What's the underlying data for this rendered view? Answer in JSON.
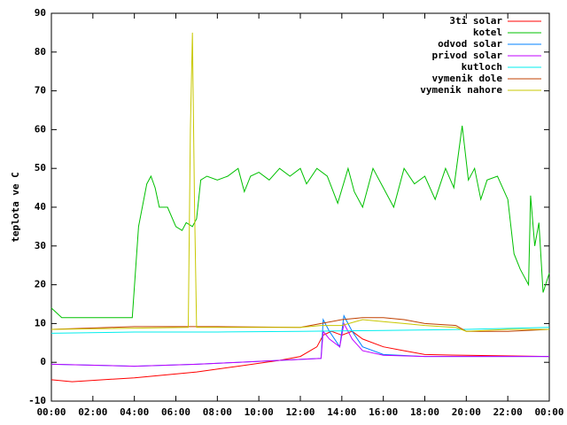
{
  "chart_data": {
    "type": "line",
    "ylabel": "teplota ve C",
    "xlim": [
      0,
      24
    ],
    "ylim": [
      -10,
      90
    ],
    "xticks": [
      {
        "value": 0,
        "label": "00:00"
      },
      {
        "value": 2,
        "label": "02:00"
      },
      {
        "value": 4,
        "label": "04:00"
      },
      {
        "value": 6,
        "label": "06:00"
      },
      {
        "value": 8,
        "label": "08:00"
      },
      {
        "value": 10,
        "label": "10:00"
      },
      {
        "value": 12,
        "label": "12:00"
      },
      {
        "value": 14,
        "label": "14:00"
      },
      {
        "value": 16,
        "label": "16:00"
      },
      {
        "value": 18,
        "label": "18:00"
      },
      {
        "value": 20,
        "label": "20:00"
      },
      {
        "value": 22,
        "label": "22:00"
      },
      {
        "value": 24,
        "label": "00:00"
      }
    ],
    "yticks": [
      -10,
      0,
      10,
      20,
      30,
      40,
      50,
      60,
      70,
      80,
      90
    ],
    "legend": "top-right",
    "series": [
      {
        "name": "3ti solar",
        "color": "#ff0000",
        "x": [
          0,
          1,
          4,
          7,
          9,
          11,
          12,
          12.8,
          13.1,
          13.5,
          14,
          14.5,
          15,
          16,
          17,
          18,
          20,
          24
        ],
        "values": [
          -4.5,
          -5,
          -4,
          -2.5,
          -1,
          0.5,
          1.5,
          4,
          7,
          8,
          7,
          8,
          6,
          4,
          3,
          2,
          1.8,
          1.5
        ]
      },
      {
        "name": "kotel",
        "color": "#00c000",
        "x": [
          0,
          0.5,
          1,
          2,
          3,
          3.9,
          4.2,
          4.6,
          4.8,
          5.0,
          5.2,
          5.6,
          6,
          6.3,
          6.5,
          6.8,
          7.0,
          7.2,
          7.5,
          8,
          8.5,
          9,
          9.3,
          9.6,
          10,
          10.5,
          11,
          11.5,
          12,
          12.3,
          12.8,
          13.3,
          13.8,
          14.3,
          14.6,
          15.0,
          15.5,
          16,
          16.5,
          17,
          17.5,
          18,
          18.5,
          19,
          19.4,
          19.8,
          20.1,
          20.4,
          20.7,
          21,
          21.5,
          22,
          22.3,
          22.6,
          23,
          23.1,
          23.3,
          23.5,
          23.7,
          24
        ],
        "values": [
          14,
          11.5,
          11.5,
          11.5,
          11.5,
          11.5,
          35,
          46,
          48,
          45,
          40,
          40,
          35,
          34,
          36,
          35,
          37,
          47,
          48,
          47,
          48,
          50,
          44,
          48,
          49,
          47,
          50,
          48,
          50,
          46,
          50,
          48,
          41,
          50,
          44,
          40,
          50,
          45,
          40,
          50,
          46,
          48,
          42,
          50,
          45,
          61,
          47,
          50,
          42,
          47,
          48,
          42,
          28,
          24,
          20,
          43,
          30,
          36,
          18,
          23
        ]
      },
      {
        "name": "odvod solar",
        "color": "#0080ff",
        "x": [
          0,
          4,
          7,
          9,
          11,
          13,
          13.1,
          13.4,
          13.9,
          14.1,
          14.5,
          15,
          16,
          18,
          24
        ],
        "values": [
          -0.5,
          -1,
          -0.5,
          0,
          0.5,
          1,
          11,
          8,
          4,
          12,
          8,
          4,
          2,
          1.5,
          1.5
        ]
      },
      {
        "name": "privod solar",
        "color": "#c000ff",
        "x": [
          0,
          4,
          7,
          9,
          11,
          13,
          13.1,
          13.4,
          13.9,
          14.1,
          14.5,
          15,
          16,
          18,
          24
        ],
        "values": [
          -0.5,
          -1,
          -0.5,
          0,
          0.5,
          1,
          8,
          6,
          4,
          10,
          6,
          3,
          1.8,
          1.5,
          1.5
        ]
      },
      {
        "name": "kutloch",
        "color": "#00eeee",
        "x": [
          0,
          4,
          8,
          12,
          16,
          20,
          24
        ],
        "values": [
          7.5,
          7.8,
          7.8,
          8,
          8.2,
          8.5,
          9
        ]
      },
      {
        "name": "vymenik dole",
        "color": "#c04000",
        "x": [
          0,
          4,
          8,
          12,
          13,
          14,
          15,
          16,
          17,
          18,
          19.5,
          20,
          22,
          24
        ],
        "values": [
          8.5,
          9.2,
          9.2,
          9,
          10,
          11,
          11.5,
          11.5,
          11,
          10,
          9.5,
          8,
          8,
          8.5
        ]
      },
      {
        "name": "vymenik nahore",
        "color": "#c8c800",
        "x": [
          0,
          6.6,
          6.7,
          6.8,
          6.9,
          7.0,
          12,
          13,
          14,
          15,
          16,
          17,
          18,
          19.5,
          20,
          22,
          24
        ],
        "values": [
          8.5,
          9,
          60,
          85,
          40,
          9,
          9,
          9.5,
          9.5,
          11,
          10.5,
          10,
          9.5,
          9,
          8,
          8.5,
          8.5
        ]
      }
    ]
  }
}
